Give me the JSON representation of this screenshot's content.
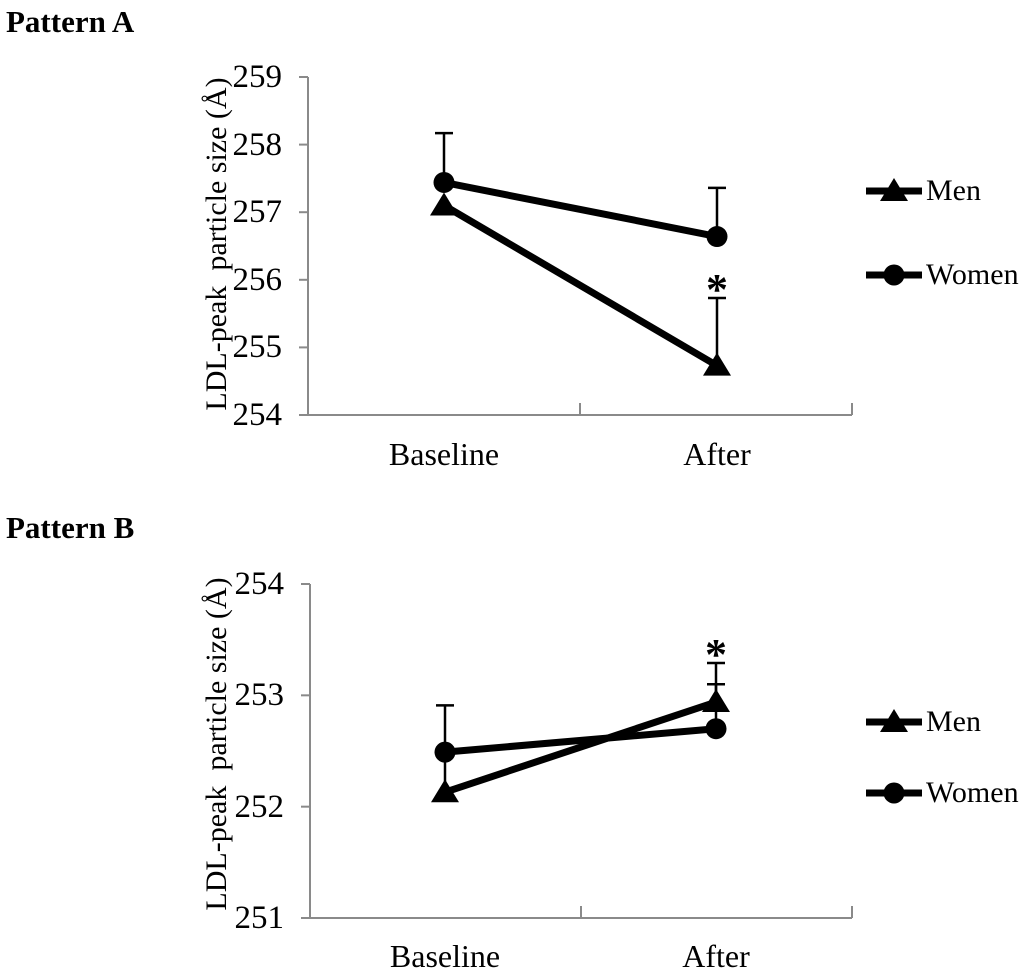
{
  "figure": {
    "background": "#ffffff"
  },
  "colors": {
    "series": "#000000",
    "axis": "#8a8a8a",
    "text": "#000000"
  },
  "chart_data": [
    {
      "type": "line",
      "title": "Pattern A",
      "ylabel": "LDL-peak  particle size (Å)",
      "categories": [
        "Baseline",
        "After"
      ],
      "ylim": [
        254,
        259
      ],
      "yticks": [
        259,
        258,
        257,
        256,
        255,
        254
      ],
      "grid": false,
      "legend_position": "right",
      "legend": [
        "Men",
        "Women"
      ],
      "series": [
        {
          "name": "Men",
          "marker": "triangle",
          "values": [
            257.1,
            254.73
          ],
          "errors_up": [
            null,
            1.0
          ],
          "errors_down_line": [
            null,
            null
          ],
          "sig": [
            null,
            "*"
          ]
        },
        {
          "name": "Women",
          "marker": "circle",
          "values": [
            257.44,
            256.64
          ],
          "errors_up": [
            0.73,
            0.72
          ],
          "errors_down_line": [
            null,
            null
          ],
          "sig": [
            null,
            null
          ]
        }
      ]
    },
    {
      "type": "line",
      "title": "Pattern B",
      "ylabel": "LDL-peak  particle size (Å)",
      "categories": [
        "Baseline",
        "After"
      ],
      "ylim": [
        251,
        254
      ],
      "yticks": [
        254,
        253,
        252,
        251
      ],
      "grid": false,
      "legend_position": "right",
      "legend": [
        "Men",
        "Women"
      ],
      "series": [
        {
          "name": "Men",
          "marker": "triangle",
          "values": [
            252.13,
            252.94
          ],
          "errors_up": [
            null,
            0.35
          ],
          "errors_down_line": [
            null,
            null
          ],
          "sig": [
            null,
            "*"
          ]
        },
        {
          "name": "Women",
          "marker": "circle",
          "values": [
            252.49,
            252.7
          ],
          "errors_up": [
            0.42,
            0.4
          ],
          "errors_down_line": [
            0.28,
            null
          ],
          "sig": [
            null,
            null
          ]
        }
      ]
    }
  ]
}
